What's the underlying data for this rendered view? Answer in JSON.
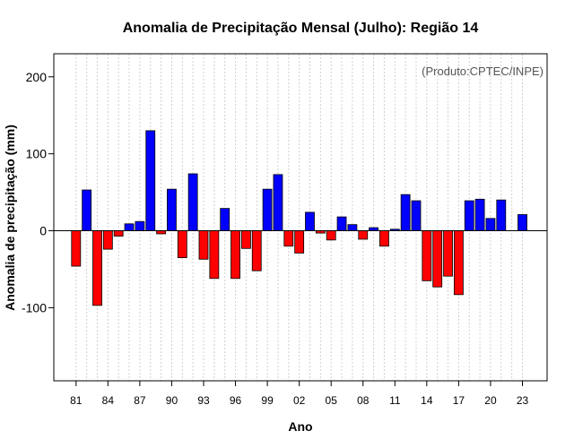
{
  "chart_data": {
    "type": "bar",
    "title": "Anomalia de Precipitação Mensal (Julho): Região 14",
    "xlabel": "Ano",
    "ylabel": "Anomalia de precipitação (mm)",
    "source_note": "(Produto:CPTEC/INPE)",
    "ylim": [
      -195,
      230
    ],
    "y_ticks": [
      -100,
      0,
      100,
      200
    ],
    "x_ticks": [
      "81",
      "84",
      "87",
      "90",
      "93",
      "96",
      "99",
      "02",
      "05",
      "08",
      "11",
      "14",
      "17",
      "20",
      "23"
    ],
    "x": [
      1981,
      1982,
      1983,
      1984,
      1985,
      1986,
      1987,
      1988,
      1989,
      1990,
      1991,
      1992,
      1993,
      1994,
      1995,
      1996,
      1997,
      1998,
      1999,
      2000,
      2001,
      2002,
      2003,
      2004,
      2005,
      2006,
      2007,
      2008,
      2009,
      2010,
      2011,
      2012,
      2013,
      2014,
      2015,
      2016,
      2017,
      2018,
      2019,
      2020,
      2021,
      2022,
      2023
    ],
    "values": [
      -46,
      53,
      -97,
      -24,
      -7,
      9,
      12,
      130,
      -4,
      54,
      -35,
      74,
      -37,
      -62,
      29,
      -62,
      -23,
      -52,
      54,
      73,
      -20,
      -29,
      24,
      -3,
      -12,
      18,
      8,
      -11,
      4,
      -20,
      2,
      47,
      39,
      -65,
      -73,
      -59,
      -83,
      39,
      41,
      16,
      40,
      0,
      21
    ],
    "positive_color": "#0000ff",
    "negative_color": "#ff0000",
    "grid": "vertical dotted",
    "zero_line": true
  }
}
